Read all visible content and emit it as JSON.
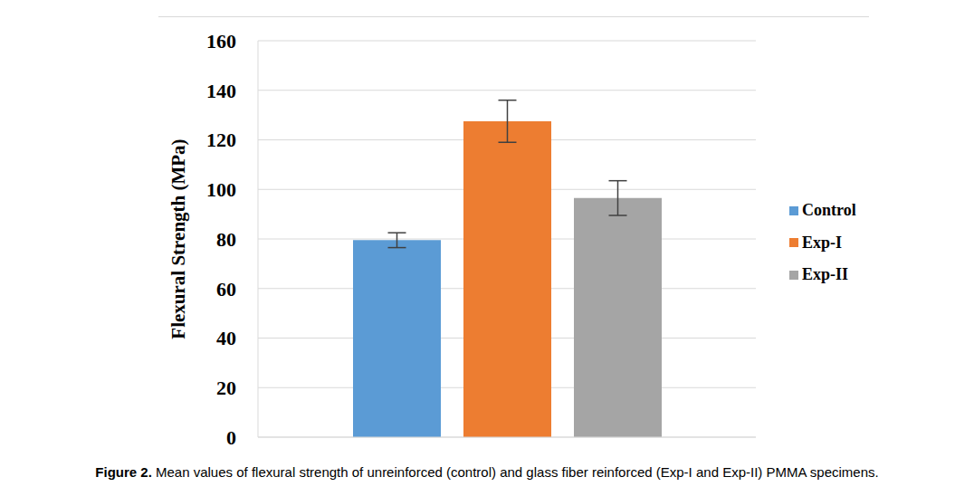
{
  "chart_data": {
    "type": "bar",
    "y_label": "Flexural Strength (MPa)",
    "caption_label": "Figure 2.",
    "caption": "Mean values of flexural strength of unreinforced (control) and glass fiber reinforced (Exp-I and Exp-II) PMMA specimens.",
    "categories": [
      null
    ],
    "series": [
      {
        "name": "Control",
        "color": "#5b9bd5",
        "values": [
          79.5
        ],
        "error": [
          3
        ]
      },
      {
        "name": "Exp-I",
        "color": "#ed7d31",
        "values": [
          127.5
        ],
        "error": [
          8.5
        ]
      },
      {
        "name": "Exp-II",
        "color": "#a5a5a5",
        "values": [
          96.5
        ],
        "error": [
          7
        ]
      }
    ],
    "ylim": [
      0,
      160
    ],
    "yticks": [
      0,
      20,
      40,
      60,
      80,
      100,
      120,
      140,
      160
    ],
    "grid": true,
    "legend": "right",
    "tick_labels": "y"
  }
}
